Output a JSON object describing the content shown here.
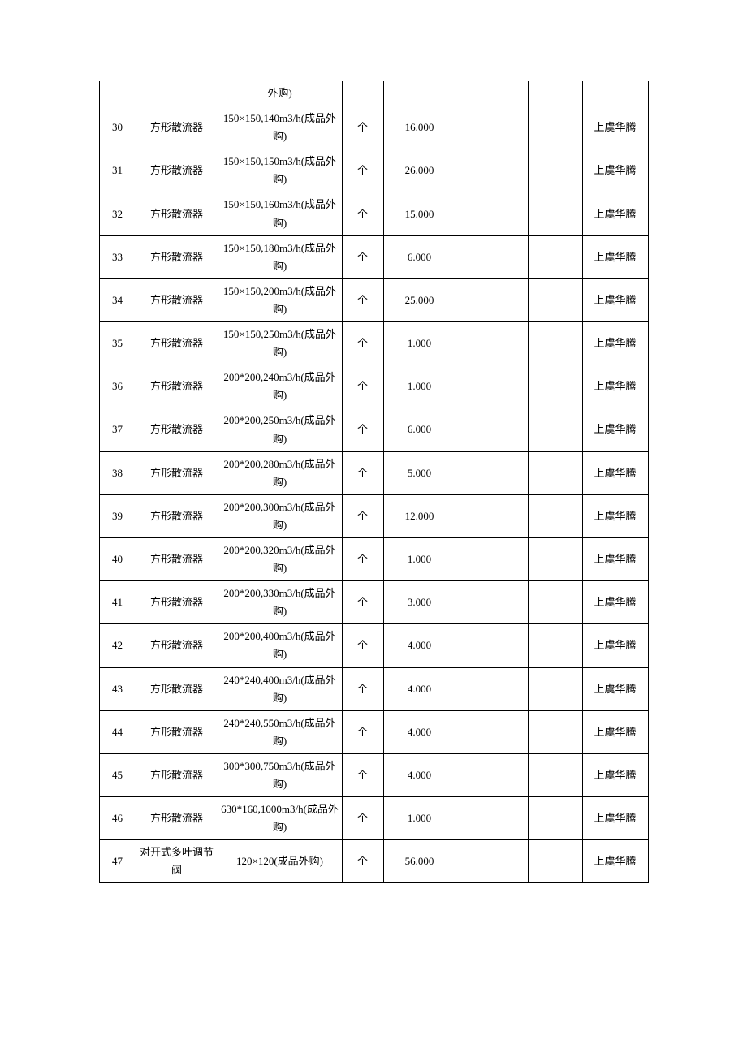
{
  "table": {
    "columns": [
      {
        "key": "no",
        "width_class": "col0"
      },
      {
        "key": "name",
        "width_class": "col1"
      },
      {
        "key": "spec",
        "width_class": "col2"
      },
      {
        "key": "unit",
        "width_class": "col3"
      },
      {
        "key": "qty",
        "width_class": "col4"
      },
      {
        "key": "c5",
        "width_class": "col5"
      },
      {
        "key": "c6",
        "width_class": "col6"
      },
      {
        "key": "brand",
        "width_class": "col7"
      }
    ],
    "rows": [
      {
        "no": "",
        "name": "",
        "spec": "外购)",
        "unit": "",
        "qty": "",
        "c5": "",
        "c6": "",
        "brand": ""
      },
      {
        "no": "30",
        "name": "方形散流器",
        "spec": "150×150,140m3/h(成品外购)",
        "unit": "个",
        "qty": "16.000",
        "c5": "",
        "c6": "",
        "brand": "上虞华腾"
      },
      {
        "no": "31",
        "name": "方形散流器",
        "spec": "150×150,150m3/h(成品外购)",
        "unit": "个",
        "qty": "26.000",
        "c5": "",
        "c6": "",
        "brand": "上虞华腾"
      },
      {
        "no": "32",
        "name": "方形散流器",
        "spec": "150×150,160m3/h(成品外购)",
        "unit": "个",
        "qty": "15.000",
        "c5": "",
        "c6": "",
        "brand": "上虞华腾"
      },
      {
        "no": "33",
        "name": "方形散流器",
        "spec": "150×150,180m3/h(成品外购)",
        "unit": "个",
        "qty": "6.000",
        "c5": "",
        "c6": "",
        "brand": "上虞华腾"
      },
      {
        "no": "34",
        "name": "方形散流器",
        "spec": "150×150,200m3/h(成品外购)",
        "unit": "个",
        "qty": "25.000",
        "c5": "",
        "c6": "",
        "brand": "上虞华腾"
      },
      {
        "no": "35",
        "name": "方形散流器",
        "spec": "150×150,250m3/h(成品外购)",
        "unit": "个",
        "qty": "1.000",
        "c5": "",
        "c6": "",
        "brand": "上虞华腾"
      },
      {
        "no": "36",
        "name": "方形散流器",
        "spec": "200*200,240m3/h(成品外购)",
        "unit": "个",
        "qty": "1.000",
        "c5": "",
        "c6": "",
        "brand": "上虞华腾"
      },
      {
        "no": "37",
        "name": "方形散流器",
        "spec": "200*200,250m3/h(成品外购)",
        "unit": "个",
        "qty": "6.000",
        "c5": "",
        "c6": "",
        "brand": "上虞华腾"
      },
      {
        "no": "38",
        "name": "方形散流器",
        "spec": "200*200,280m3/h(成品外购)",
        "unit": "个",
        "qty": "5.000",
        "c5": "",
        "c6": "",
        "brand": "上虞华腾"
      },
      {
        "no": "39",
        "name": "方形散流器",
        "spec": "200*200,300m3/h(成品外购)",
        "unit": "个",
        "qty": "12.000",
        "c5": "",
        "c6": "",
        "brand": "上虞华腾"
      },
      {
        "no": "40",
        "name": "方形散流器",
        "spec": "200*200,320m3/h(成品外购)",
        "unit": "个",
        "qty": "1.000",
        "c5": "",
        "c6": "",
        "brand": "上虞华腾"
      },
      {
        "no": "41",
        "name": "方形散流器",
        "spec": "200*200,330m3/h(成品外购)",
        "unit": "个",
        "qty": "3.000",
        "c5": "",
        "c6": "",
        "brand": "上虞华腾"
      },
      {
        "no": "42",
        "name": "方形散流器",
        "spec": "200*200,400m3/h(成品外购)",
        "unit": "个",
        "qty": "4.000",
        "c5": "",
        "c6": "",
        "brand": "上虞华腾"
      },
      {
        "no": "43",
        "name": "方形散流器",
        "spec": "240*240,400m3/h(成品外购)",
        "unit": "个",
        "qty": "4.000",
        "c5": "",
        "c6": "",
        "brand": "上虞华腾"
      },
      {
        "no": "44",
        "name": "方形散流器",
        "spec": "240*240,550m3/h(成品外购)",
        "unit": "个",
        "qty": "4.000",
        "c5": "",
        "c6": "",
        "brand": "上虞华腾"
      },
      {
        "no": "45",
        "name": "方形散流器",
        "spec": "300*300,750m3/h(成品外购)",
        "unit": "个",
        "qty": "4.000",
        "c5": "",
        "c6": "",
        "brand": "上虞华腾"
      },
      {
        "no": "46",
        "name": "方形散流器",
        "spec": "630*160,1000m3/h(成品外购)",
        "unit": "个",
        "qty": "1.000",
        "c5": "",
        "c6": "",
        "brand": "上虞华腾"
      },
      {
        "no": "47",
        "name": "对开式多叶调节阀",
        "spec": "120×120(成品外购)",
        "unit": "个",
        "qty": "56.000",
        "c5": "",
        "c6": "",
        "brand": "上虞华腾"
      }
    ]
  }
}
